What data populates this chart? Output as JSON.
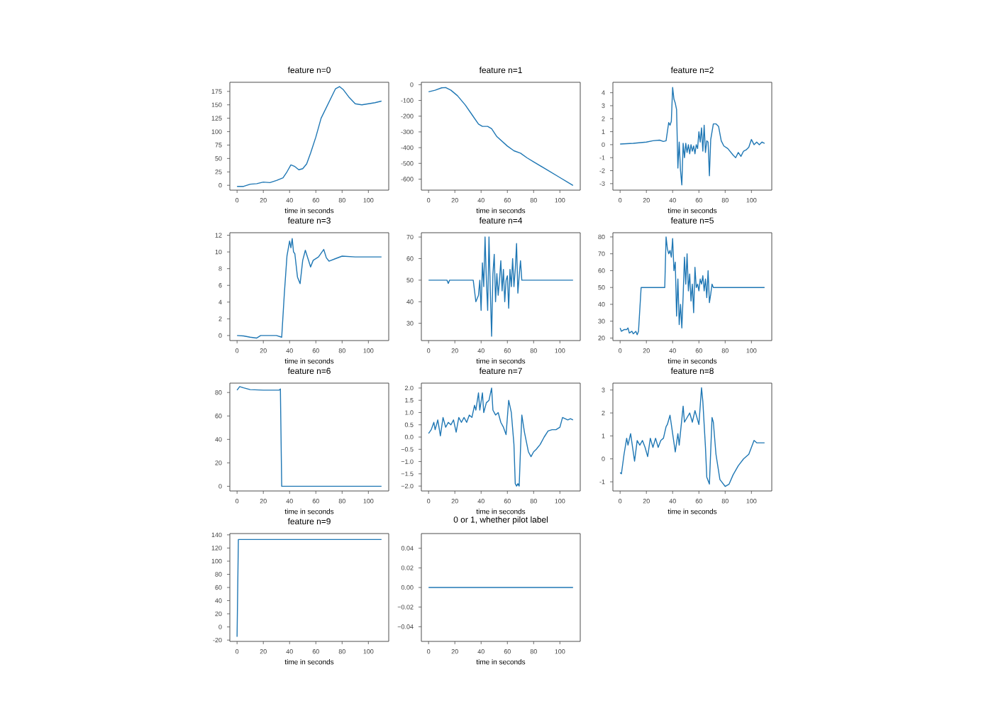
{
  "chart_data": [
    {
      "type": "line",
      "title": "feature n=0",
      "xlabel": "time in seconds",
      "color": "#1f77b4",
      "xlim": [
        -5.5,
        115.5
      ],
      "ylim": [
        -9,
        192
      ],
      "xticks": [
        0,
        20,
        40,
        60,
        80,
        100
      ],
      "yticks": [
        0,
        25,
        50,
        75,
        100,
        125,
        150,
        175
      ],
      "x": [
        0,
        5,
        10,
        15,
        20,
        25,
        30,
        35,
        38,
        41,
        44,
        47,
        50,
        53,
        56,
        60,
        64,
        68,
        72,
        75,
        78,
        81,
        85,
        90,
        95,
        100,
        105,
        110
      ],
      "values": [
        -2,
        -2,
        2,
        3,
        6,
        5,
        9,
        14,
        25,
        38,
        35,
        29,
        31,
        40,
        60,
        90,
        125,
        145,
        165,
        180,
        184,
        178,
        165,
        152,
        150,
        152,
        154,
        157
      ]
    },
    {
      "type": "line",
      "title": "feature n=1",
      "xlabel": "time in seconds",
      "color": "#1f77b4",
      "xlim": [
        -5.5,
        115.5
      ],
      "ylim": [
        -670,
        15
      ],
      "xticks": [
        0,
        20,
        40,
        60,
        80,
        100
      ],
      "yticks": [
        -600,
        -500,
        -400,
        -300,
        -200,
        -100,
        0
      ],
      "x": [
        0,
        5,
        10,
        13,
        17,
        22,
        28,
        33,
        38,
        41,
        45,
        48,
        52,
        56,
        60,
        65,
        70,
        75,
        80,
        90,
        100,
        110
      ],
      "values": [
        -45,
        -35,
        -20,
        -18,
        -35,
        -70,
        -130,
        -190,
        -250,
        -265,
        -265,
        -280,
        -330,
        -360,
        -390,
        -420,
        -435,
        -465,
        -490,
        -540,
        -590,
        -640
      ]
    },
    {
      "type": "line",
      "title": "feature n=2",
      "xlabel": "time in seconds",
      "color": "#1f77b4",
      "xlim": [
        -5.5,
        115.5
      ],
      "ylim": [
        -3.5,
        4.8
      ],
      "xticks": [
        0,
        20,
        40,
        60,
        80,
        100
      ],
      "yticks": [
        -3,
        -2,
        -1,
        0,
        1,
        2,
        3,
        4
      ],
      "x": [
        0,
        10,
        20,
        25,
        30,
        33,
        35,
        37,
        38,
        39,
        40,
        41,
        42,
        43,
        44,
        45,
        46,
        47,
        48,
        49,
        50,
        51,
        52,
        53,
        54,
        55,
        56,
        57,
        58,
        59,
        60,
        61,
        62,
        63,
        64,
        65,
        66,
        67,
        68,
        69,
        71,
        73,
        75,
        77,
        79,
        82,
        86,
        88,
        90,
        92,
        94,
        96,
        98,
        100,
        102,
        104,
        106,
        108,
        110
      ],
      "values": [
        0.05,
        0.1,
        0.2,
        0.3,
        0.35,
        0.25,
        0.3,
        1.7,
        1.5,
        1.8,
        4.4,
        3.5,
        3.2,
        2.7,
        -1.8,
        0.2,
        -2,
        -3.1,
        0.1,
        -1,
        0.1,
        -0.6,
        0,
        -0.7,
        0,
        -0.5,
        -0.1,
        -0.7,
        0,
        -0.3,
        1,
        0.2,
        1.3,
        -0.5,
        1.5,
        -0.6,
        0.3,
        0.2,
        -2.4,
        0.4,
        1.6,
        1.6,
        1.4,
        0.3,
        -0.1,
        -0.3,
        -0.8,
        -1,
        -0.6,
        -0.9,
        -0.5,
        -0.4,
        -0.2,
        0.4,
        0,
        0.2,
        0,
        0.2,
        0.1
      ]
    },
    {
      "type": "line",
      "title": "feature n=3",
      "xlabel": "time in seconds",
      "color": "#1f77b4",
      "xlim": [
        -5.5,
        115.5
      ],
      "ylim": [
        -0.6,
        12.3
      ],
      "xticks": [
        0,
        20,
        40,
        60,
        80,
        100
      ],
      "yticks": [
        0,
        2,
        4,
        6,
        8,
        10,
        12
      ],
      "x": [
        0,
        5,
        10,
        15,
        18,
        25,
        30,
        34,
        36,
        38,
        40,
        41,
        42,
        43,
        44,
        46,
        48,
        50,
        52,
        54,
        56,
        58,
        62,
        66,
        68,
        70,
        75,
        80,
        90,
        110
      ],
      "values": [
        0,
        -0.05,
        -0.2,
        -0.3,
        0,
        0,
        0,
        -0.2,
        5,
        9.5,
        11.3,
        10.5,
        11.6,
        10,
        9.8,
        7,
        6.2,
        9,
        10.2,
        9.2,
        8.2,
        9,
        9.4,
        10.3,
        9.3,
        8.9,
        9.2,
        9.5,
        9.4,
        9.4
      ]
    },
    {
      "type": "line",
      "title": "feature n=4",
      "xlabel": "time in seconds",
      "color": "#1f77b4",
      "xlim": [
        -5.5,
        115.5
      ],
      "ylim": [
        22,
        72
      ],
      "xticks": [
        0,
        20,
        40,
        60,
        80,
        100
      ],
      "yticks": [
        30,
        40,
        50,
        60,
        70
      ],
      "x": [
        0,
        14,
        15,
        16,
        34,
        36,
        38,
        39,
        40,
        41,
        42,
        43,
        44,
        45,
        46,
        47,
        48,
        49,
        50,
        51,
        52,
        53,
        54,
        55,
        56,
        57,
        58,
        59,
        60,
        61,
        62,
        63,
        64,
        65,
        66,
        67,
        68,
        69,
        70,
        71,
        110
      ],
      "values": [
        50,
        50,
        48.5,
        50,
        50,
        40,
        43,
        50,
        36,
        58,
        47,
        70,
        50,
        36,
        70,
        45,
        24,
        53,
        62,
        40,
        53,
        43,
        50,
        59,
        45,
        55,
        40,
        50,
        52,
        37,
        55,
        47,
        60,
        47,
        55,
        67,
        44,
        52,
        59,
        50,
        50
      ]
    },
    {
      "type": "line",
      "title": "feature n=5",
      "xlabel": "time in seconds",
      "color": "#1f77b4",
      "xlim": [
        -5.5,
        115.5
      ],
      "ylim": [
        18.5,
        82.5
      ],
      "xticks": [
        0,
        20,
        40,
        60,
        80,
        100
      ],
      "yticks": [
        20,
        30,
        40,
        50,
        60,
        70,
        80
      ],
      "x": [
        0,
        1,
        3,
        5,
        6,
        7,
        9,
        10,
        12,
        13,
        14,
        16,
        34,
        35,
        36,
        37,
        38,
        39,
        40,
        41,
        42,
        43,
        44,
        45,
        46,
        47,
        48,
        49,
        50,
        51,
        52,
        53,
        54,
        55,
        56,
        57,
        58,
        59,
        60,
        61,
        62,
        63,
        64,
        65,
        66,
        67,
        68,
        69,
        70,
        71,
        110
      ],
      "values": [
        26,
        24,
        25,
        25,
        26,
        23,
        24,
        22.5,
        24,
        22,
        24,
        50,
        50,
        80,
        73,
        70,
        72,
        68,
        79,
        60,
        65,
        33,
        55,
        28,
        40,
        26,
        45,
        68,
        52,
        70,
        48,
        58,
        42,
        52,
        35,
        62,
        50,
        52,
        48,
        55,
        52,
        57,
        48,
        55,
        44,
        60,
        41,
        46,
        52,
        50,
        50
      ]
    },
    {
      "type": "line",
      "title": "feature n=6",
      "xlabel": "time in seconds",
      "color": "#1f77b4",
      "xlim": [
        -5.5,
        115.5
      ],
      "ylim": [
        -4,
        88
      ],
      "xticks": [
        0,
        20,
        40,
        60,
        80,
        100
      ],
      "yticks": [
        0,
        20,
        40,
        60,
        80
      ],
      "x": [
        0,
        2,
        5,
        10,
        20,
        32,
        33,
        34,
        110
      ],
      "values": [
        82,
        85,
        84,
        82.5,
        82,
        82,
        83,
        0,
        0
      ]
    },
    {
      "type": "line",
      "title": "feature n=7",
      "xlabel": "time in seconds",
      "color": "#1f77b4",
      "xlim": [
        -5.5,
        115.5
      ],
      "ylim": [
        -2.2,
        2.2
      ],
      "xticks": [
        0,
        20,
        40,
        60,
        80,
        100
      ],
      "yticks": [
        {
          "value": -2,
          "label": "−2.0"
        },
        {
          "value": -1.5,
          "label": "−1.5"
        },
        {
          "value": -1,
          "label": "−1.0"
        },
        {
          "value": -0.5,
          "label": "−0.5"
        },
        {
          "value": 0,
          "label": "0.0"
        },
        {
          "value": 0.5,
          "label": "0.5"
        },
        {
          "value": 1,
          "label": "1.0"
        },
        {
          "value": 1.5,
          "label": "1.5"
        },
        {
          "value": 2,
          "label": "2.0"
        }
      ],
      "x": [
        0,
        2,
        4,
        5,
        7,
        9,
        11,
        13,
        15,
        17,
        19,
        21,
        23,
        25,
        27,
        29,
        31,
        33,
        35,
        36,
        38,
        39,
        41,
        42,
        44,
        46,
        48,
        49,
        51,
        53,
        55,
        57,
        59,
        61,
        63,
        65,
        66,
        67,
        68,
        69,
        70,
        71,
        73,
        76,
        78,
        80,
        82,
        85,
        88,
        91,
        94,
        97,
        100,
        102,
        104,
        106,
        108,
        110
      ],
      "values": [
        0.15,
        0.3,
        0.6,
        0.3,
        0.7,
        0.05,
        0.8,
        0.4,
        0.6,
        0.5,
        0.7,
        0.2,
        0.8,
        0.6,
        0.8,
        0.6,
        0.9,
        0.8,
        1.3,
        1.1,
        1.8,
        1.1,
        1.8,
        1,
        1.4,
        1.5,
        2,
        1.1,
        0.9,
        1,
        0.6,
        0.4,
        0.1,
        1.5,
        1,
        -0.3,
        -1.9,
        -2,
        -1.9,
        -2,
        -0.5,
        0.9,
        0.2,
        -0.6,
        -0.8,
        -0.6,
        -0.5,
        -0.3,
        0,
        0.25,
        0.3,
        0.3,
        0.4,
        0.8,
        0.75,
        0.7,
        0.75,
        0.7
      ]
    },
    {
      "type": "line",
      "title": "feature n=8",
      "xlabel": "time in seconds",
      "color": "#1f77b4",
      "xlim": [
        -5.5,
        115.5
      ],
      "ylim": [
        -1.4,
        3.3
      ],
      "xticks": [
        0,
        20,
        40,
        60,
        80,
        100
      ],
      "yticks": [
        -1,
        0,
        1,
        2,
        3
      ],
      "x": [
        0,
        1,
        3,
        5,
        6,
        8,
        9,
        11,
        13,
        15,
        17,
        19,
        21,
        23,
        25,
        27,
        29,
        31,
        33,
        35,
        36,
        38,
        40,
        42,
        44,
        45,
        48,
        49,
        51,
        53,
        55,
        57,
        59,
        60,
        62,
        63,
        65,
        66,
        68,
        70,
        71,
        73,
        76,
        80,
        83,
        86,
        90,
        94,
        98,
        102,
        104,
        107,
        110
      ],
      "values": [
        -0.6,
        -0.65,
        0.2,
        0.9,
        0.6,
        1.1,
        0.7,
        -0.1,
        0.8,
        0.6,
        0.8,
        0.5,
        0.1,
        0.9,
        0.5,
        0.9,
        0.5,
        0.8,
        0.9,
        1.4,
        1.5,
        1.9,
        1.1,
        0.3,
        1.1,
        0.6,
        2.3,
        1.6,
        1.8,
        2,
        1.6,
        2.1,
        1.7,
        1.5,
        3.1,
        2.5,
        0.5,
        -0.8,
        -1.1,
        1.8,
        1.6,
        0.2,
        -0.9,
        -1.2,
        -1.1,
        -0.7,
        -0.3,
        0,
        0.2,
        0.8,
        0.7,
        0.7,
        0.7
      ]
    },
    {
      "type": "line",
      "title": "feature n=9",
      "xlabel": "time in seconds",
      "color": "#1f77b4",
      "xlim": [
        -5.5,
        115.5
      ],
      "ylim": [
        -22,
        142
      ],
      "xticks": [
        0,
        20,
        40,
        60,
        80,
        100
      ],
      "yticks": [
        -20,
        0,
        20,
        40,
        60,
        80,
        100,
        120,
        140
      ],
      "x": [
        0,
        1,
        110
      ],
      "values": [
        -15,
        133,
        133
      ]
    },
    {
      "type": "line",
      "title": "0 or 1, whether pilot label",
      "xlabel": "time in seconds",
      "color": "#1f77b4",
      "xlim": [
        -5.5,
        115.5
      ],
      "ylim": [
        -0.055,
        0.055
      ],
      "xticks": [
        0,
        20,
        40,
        60,
        80,
        100
      ],
      "yticks": [
        {
          "value": -0.04,
          "label": "−0.04"
        },
        {
          "value": -0.02,
          "label": "−0.02"
        },
        {
          "value": 0,
          "label": "0.00"
        },
        {
          "value": 0.02,
          "label": "0.02"
        },
        {
          "value": 0.04,
          "label": "0.04"
        }
      ],
      "x": [
        0,
        110
      ],
      "values": [
        0,
        0
      ]
    }
  ]
}
